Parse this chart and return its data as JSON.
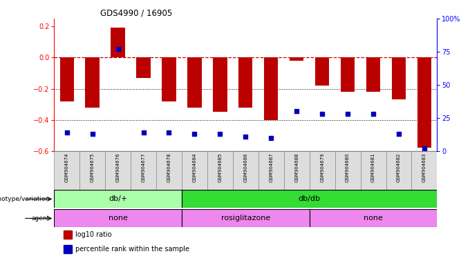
{
  "title": "GDS4990 / 16905",
  "samples": [
    "GSM904674",
    "GSM904675",
    "GSM904676",
    "GSM904677",
    "GSM904678",
    "GSM904684",
    "GSM904685",
    "GSM904686",
    "GSM904687",
    "GSM904688",
    "GSM904679",
    "GSM904680",
    "GSM904681",
    "GSM904682",
    "GSM904683"
  ],
  "log10_ratio": [
    -0.28,
    -0.32,
    0.19,
    -0.13,
    -0.28,
    -0.32,
    -0.35,
    -0.32,
    -0.4,
    -0.02,
    -0.18,
    -0.22,
    -0.22,
    -0.27,
    -0.58
  ],
  "percentile": [
    14,
    13,
    77,
    14,
    14,
    13,
    13,
    11,
    10,
    30,
    28,
    28,
    28,
    13,
    2
  ],
  "genotype_groups": [
    {
      "label": "db/+",
      "start": 0,
      "end": 5,
      "color": "#aaffaa"
    },
    {
      "label": "db/db",
      "start": 5,
      "end": 15,
      "color": "#33dd33"
    }
  ],
  "agent_groups": [
    {
      "label": "none",
      "start": 0,
      "end": 5,
      "color": "#ee88ee"
    },
    {
      "label": "rosiglitazone",
      "start": 5,
      "end": 10,
      "color": "#ee88ee"
    },
    {
      "label": "none",
      "start": 10,
      "end": 15,
      "color": "#ee88ee"
    }
  ],
  "bar_color": "#BB0000",
  "dot_color": "#0000BB",
  "dashed_line_color": "#CC0000",
  "ylim_left": [
    -0.6,
    0.25
  ],
  "ylim_right": [
    0,
    100
  ],
  "yticks_left": [
    -0.6,
    -0.4,
    -0.2,
    0.0,
    0.2
  ],
  "yticks_right": [
    0,
    25,
    50,
    75,
    100
  ],
  "background_color": "#ffffff",
  "grid_dotted_values": [
    -0.2,
    -0.4
  ],
  "legend_items": [
    {
      "label": "log10 ratio",
      "color": "#BB0000"
    },
    {
      "label": "percentile rank within the sample",
      "color": "#0000BB"
    }
  ]
}
